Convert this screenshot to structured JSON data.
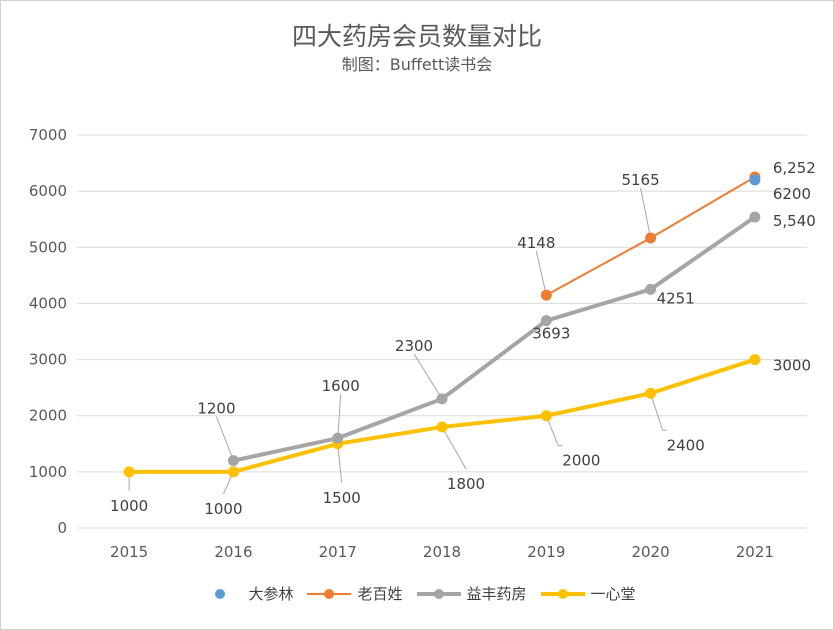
{
  "chart_data": {
    "type": "line",
    "title": "四大药房会员数量对比",
    "subtitle": "制图：Buffett读书会",
    "categories": [
      "2015",
      "2016",
      "2017",
      "2018",
      "2019",
      "2020",
      "2021"
    ],
    "ylim": [
      0,
      7000
    ],
    "yticks": [
      "0",
      "1000",
      "2000",
      "3000",
      "4000",
      "5000",
      "6000",
      "7000"
    ],
    "grid": true,
    "legend_position": "bottom",
    "series": [
      {
        "name": "大参林",
        "color": "#5B9BD5",
        "values": [
          null,
          null,
          null,
          null,
          null,
          null,
          6200
        ],
        "labels": [
          "",
          "",
          "",
          "",
          "",
          "",
          "6200"
        ]
      },
      {
        "name": "老百姓",
        "color": "#ED7D31",
        "values": [
          null,
          null,
          null,
          null,
          4148,
          5165,
          6252
        ],
        "labels": [
          "",
          "",
          "",
          "",
          "4148",
          "5165",
          "6,252"
        ]
      },
      {
        "name": "益丰药房",
        "color": "#A5A5A5",
        "values": [
          null,
          1200,
          1600,
          2300,
          3693,
          4251,
          5540
        ],
        "labels": [
          "",
          "1200",
          "1600",
          "2300",
          "3693",
          "4251",
          "5,540"
        ]
      },
      {
        "name": "一心堂",
        "color": "#FFC000",
        "values": [
          1000,
          1000,
          1500,
          1800,
          2000,
          2400,
          3000
        ],
        "labels": [
          "1000",
          "1000",
          "1500",
          "1800",
          "2000",
          "2400",
          "3000"
        ]
      }
    ]
  }
}
